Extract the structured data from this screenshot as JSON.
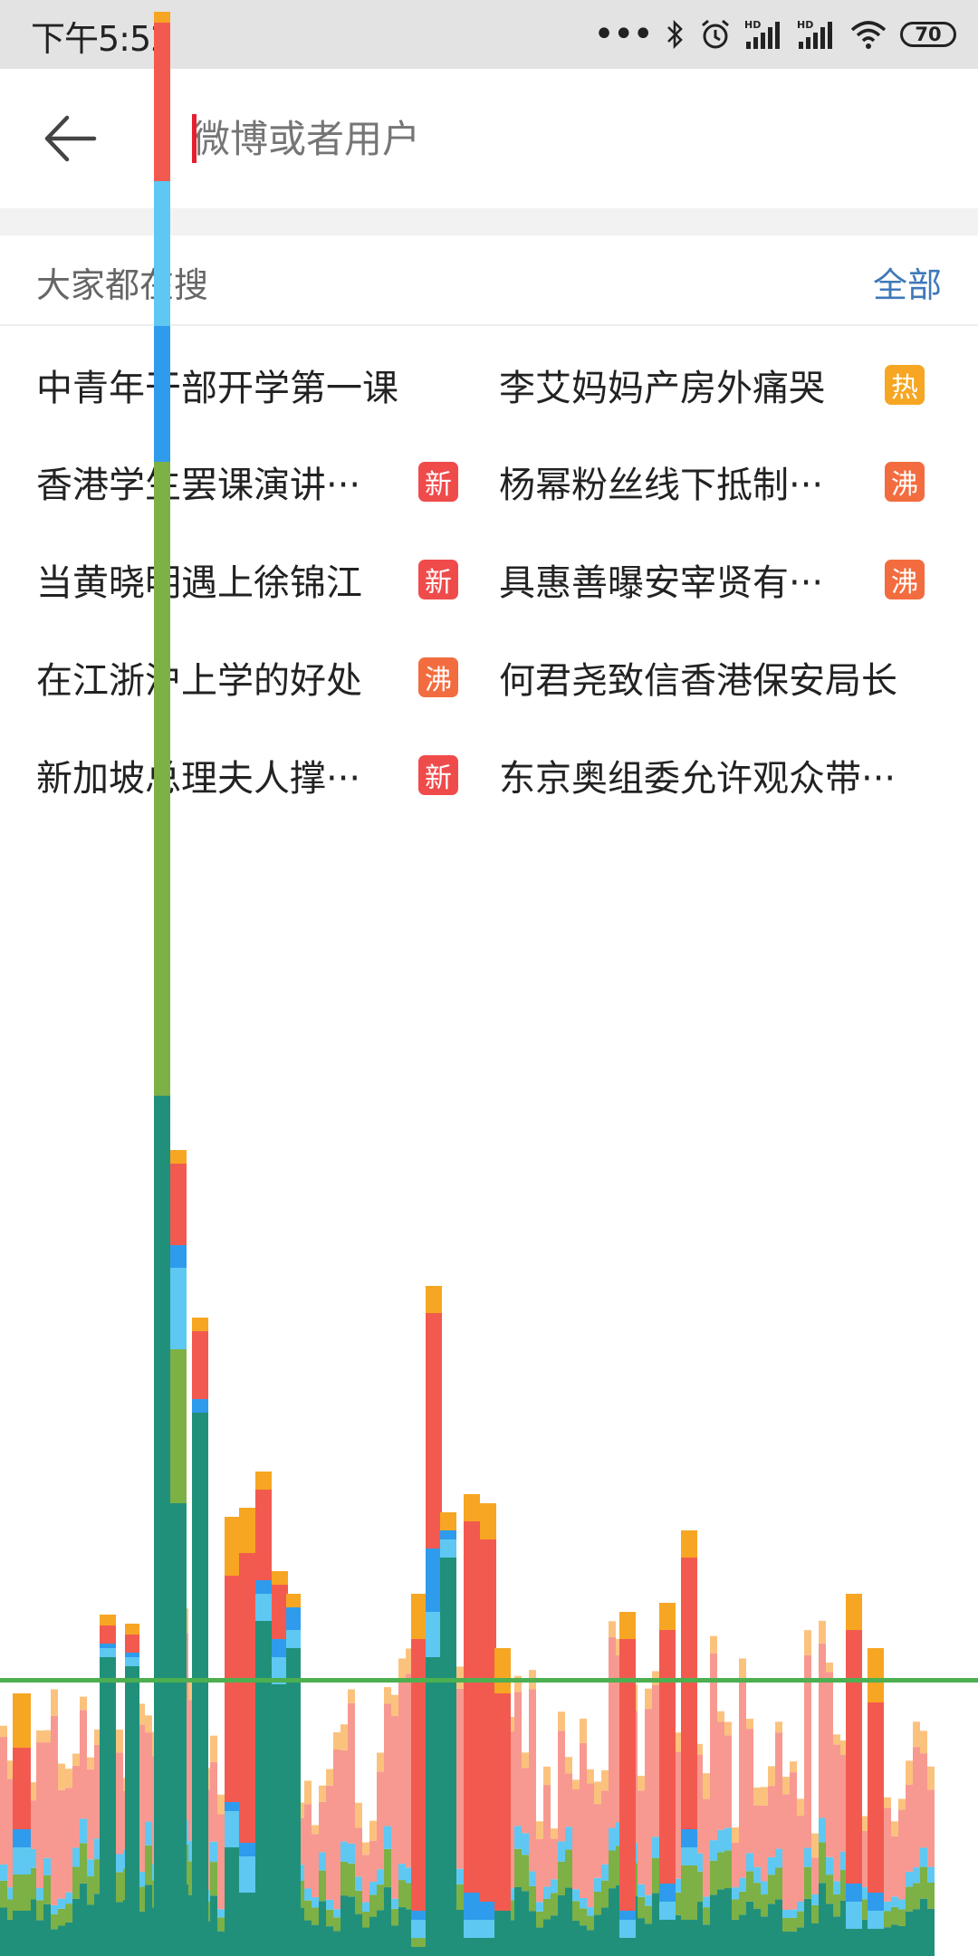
{
  "status": {
    "time": "下午5:52",
    "battery": "70"
  },
  "search": {
    "placeholder": "微博或者用户",
    "value": ""
  },
  "section": {
    "title": "大家都在搜",
    "more": "全部"
  },
  "hot_items": [
    {
      "text": "中青年干部开学第一课",
      "badge": "",
      "badge_color": ""
    },
    {
      "text": "李艾妈妈产房外痛哭",
      "badge": "热",
      "badge_color": "#f6a623"
    },
    {
      "text": "香港学生罢课演讲···",
      "badge": "新",
      "badge_color": "#f04b4b"
    },
    {
      "text": "杨幂粉丝线下抵制···",
      "badge": "沸",
      "badge_color": "#f36c3f"
    },
    {
      "text": "当黄晓明遇上徐锦江",
      "badge": "新",
      "badge_color": "#f04b4b"
    },
    {
      "text": "具惠善曝安宰贤有···",
      "badge": "沸",
      "badge_color": "#f36c3f"
    },
    {
      "text": "在江浙沪上学的好处",
      "badge": "沸",
      "badge_color": "#f36c3f"
    },
    {
      "text": "何君尧致信香港保安局长",
      "badge": "",
      "badge_color": ""
    },
    {
      "text": "新加坡总理夫人撑···",
      "badge": "新",
      "badge_color": "#f04b4b"
    },
    {
      "text": "东京奥组委允许观众带···",
      "badge": "",
      "badge_color": ""
    }
  ],
  "colors": {
    "accent": "#e5202e",
    "link": "#3f79b8",
    "overlay_teal": "#21907a",
    "overlay_green": "#7db045",
    "overlay_lightblue": "#5ec8f2",
    "overlay_blue": "#2f9bec",
    "overlay_red": "#f25a50",
    "overlay_pink": "#f79990",
    "overlay_orange": "#f6a623",
    "overlay_line": "#4caf50"
  }
}
